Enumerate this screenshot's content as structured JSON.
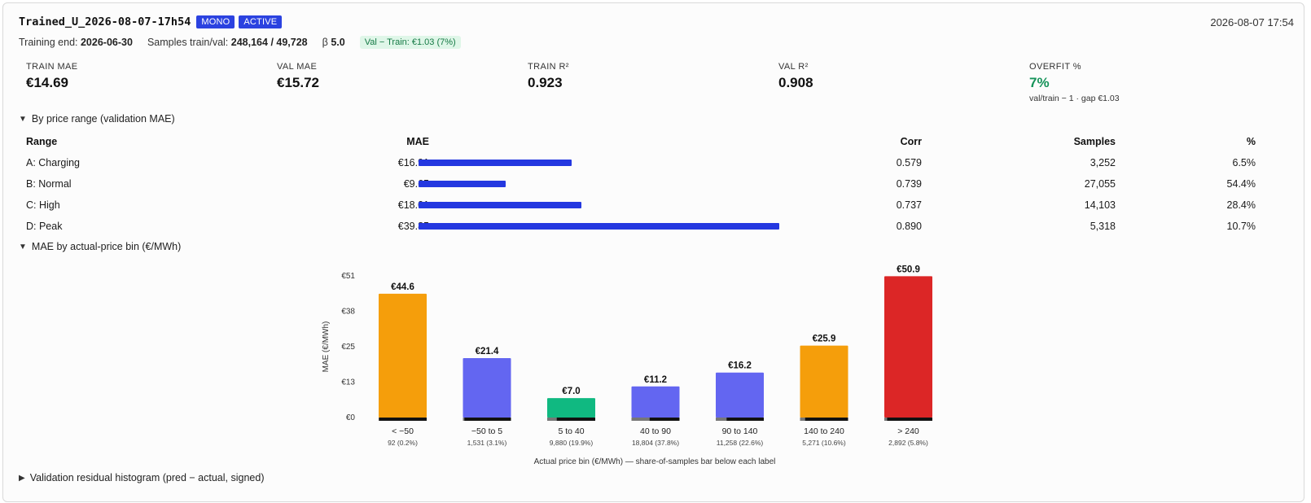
{
  "header": {
    "title": "Trained_U_2026-08-07-17h54",
    "badges": [
      "MONO",
      "ACTIVE"
    ],
    "timestamp": "2026-08-07 17:54"
  },
  "meta": {
    "training_end_label": "Training end:",
    "training_end": "2026-06-30",
    "samples_label": "Samples train/val:",
    "samples": "248,164 / 49,728",
    "beta_label": "β",
    "beta": "5.0",
    "gap_badge": "Val − Train: €1.03 (7%)"
  },
  "metrics": [
    {
      "label": "TRAIN MAE",
      "value": "€14.69",
      "sub": ""
    },
    {
      "label": "VAL MAE",
      "value": "€15.72",
      "sub": ""
    },
    {
      "label": "TRAIN R²",
      "value": "0.923",
      "sub": ""
    },
    {
      "label": "VAL R²",
      "value": "0.908",
      "sub": ""
    },
    {
      "label": "OVERFIT %",
      "value": "7%",
      "sub": "val/train − 1 · gap €1.03"
    }
  ],
  "sections": {
    "by_range": "By price range (validation MAE)",
    "by_bin": "MAE by actual-price bin (€/MWh)",
    "residual": "Validation residual histogram (pred − actual, signed)"
  },
  "range_table": {
    "headers": {
      "range": "Range",
      "mae": "MAE",
      "corr": "Corr",
      "samples": "Samples",
      "pct": "%"
    },
    "rows": [
      {
        "range": "A: Charging",
        "mae": "€16.91",
        "mae_value": 16.91,
        "corr": "0.579",
        "samples": "3,252",
        "pct": "6.5%"
      },
      {
        "range": "B: Normal",
        "mae": "€9.65",
        "mae_value": 9.65,
        "corr": "0.739",
        "samples": "27,055",
        "pct": "54.4%"
      },
      {
        "range": "C: High",
        "mae": "€18.01",
        "mae_value": 18.01,
        "corr": "0.737",
        "samples": "14,103",
        "pct": "28.4%"
      },
      {
        "range": "D: Peak",
        "mae": "€39.85",
        "mae_value": 39.85,
        "corr": "0.890",
        "samples": "5,318",
        "pct": "10.7%"
      }
    ]
  },
  "colors": {
    "accent": "#2b42e0",
    "orange": "#f59e0b",
    "blue": "#6366f1",
    "green": "#10b981",
    "red": "#dc2626",
    "good": "#16935a"
  },
  "chart_data": {
    "type": "bar",
    "title": "",
    "ylabel": "MAE (€/MWh)",
    "xlabel": "Actual price bin (€/MWh) — share-of-samples bar below each label",
    "yticks": [
      "€0",
      "€13",
      "€25",
      "€38",
      "€51"
    ],
    "ylim": [
      0,
      51
    ],
    "categories": [
      "< −50",
      "−50 to 5",
      "5 to 40",
      "40 to 90",
      "90 to 140",
      "140 to 240",
      "> 240"
    ],
    "values": [
      44.6,
      21.4,
      7.0,
      11.2,
      16.2,
      25.9,
      50.9
    ],
    "value_labels": [
      "€44.6",
      "€21.4",
      "€7.0",
      "€11.2",
      "€16.2",
      "€25.9",
      "€50.9"
    ],
    "sample_labels": [
      "92 (0.2%)",
      "1,531 (3.1%)",
      "9,880 (19.9%)",
      "18,804 (37.8%)",
      "11,258 (22.6%)",
      "5,271 (10.6%)",
      "2,892 (5.8%)"
    ],
    "share_pct": [
      0.2,
      3.1,
      19.9,
      37.8,
      22.6,
      10.6,
      5.8
    ],
    "bar_colors": [
      "#f59e0b",
      "#6366f1",
      "#10b981",
      "#6366f1",
      "#6366f1",
      "#f59e0b",
      "#dc2626"
    ],
    "grid": false
  }
}
